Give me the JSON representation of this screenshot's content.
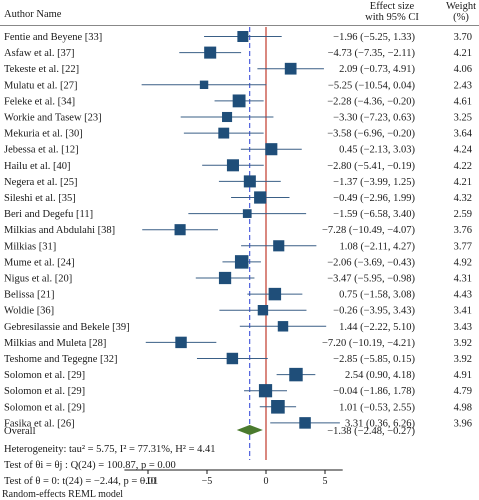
{
  "chart_data": {
    "type": "forest",
    "header": {
      "author_col": "Author Name",
      "effect_col_line1": "Effect size",
      "effect_col_line2": "with 95% CI",
      "weight_col_line1": "Weight",
      "weight_col_line2": "(%)"
    },
    "studies": [
      {
        "name": "Fentie and Beyene [33]",
        "effect": -1.96,
        "lo": -5.25,
        "hi": 1.33,
        "weight": 3.7,
        "ci_text": "−1.96 (−5.25, 1.33)",
        "weight_text": "3.70"
      },
      {
        "name": "Asfaw et al. [37]",
        "effect": -4.73,
        "lo": -7.35,
        "hi": -2.11,
        "weight": 4.21,
        "ci_text": "−4.73 (−7.35, −2.11)",
        "weight_text": "4.21"
      },
      {
        "name": "Tekeste et al. [22]",
        "effect": 2.09,
        "lo": -0.73,
        "hi": 4.91,
        "weight": 4.06,
        "ci_text": "2.09 (−0.73, 4.91)",
        "weight_text": "4.06"
      },
      {
        "name": "Mulatu et al. [27]",
        "effect": -5.25,
        "lo": -10.54,
        "hi": 0.04,
        "weight": 2.43,
        "ci_text": "−5.25 (−10.54, 0.04)",
        "weight_text": "2.43"
      },
      {
        "name": "Feleke et al. [34]",
        "effect": -2.28,
        "lo": -4.36,
        "hi": -0.2,
        "weight": 4.61,
        "ci_text": "−2.28 (−4.36, −0.20)",
        "weight_text": "4.61"
      },
      {
        "name": "Workie and Tasew [23]",
        "effect": -3.3,
        "lo": -7.23,
        "hi": 0.63,
        "weight": 3.25,
        "ci_text": "−3.30 (−7.23, 0.63)",
        "weight_text": "3.25"
      },
      {
        "name": "Mekuria et al. [30]",
        "effect": -3.58,
        "lo": -6.96,
        "hi": -0.2,
        "weight": 3.64,
        "ci_text": "−3.58 (−6.96, −0.20)",
        "weight_text": "3.64"
      },
      {
        "name": "Jebessa et al. [12]",
        "effect": 0.45,
        "lo": -2.13,
        "hi": 3.03,
        "weight": 4.24,
        "ci_text": "0.45 (−2.13, 3.03)",
        "weight_text": "4.24"
      },
      {
        "name": "Hailu et al. [40]",
        "effect": -2.8,
        "lo": -5.41,
        "hi": -0.19,
        "weight": 4.22,
        "ci_text": "−2.80 (−5.41, −0.19)",
        "weight_text": "4.22"
      },
      {
        "name": "Negera et al. [25]",
        "effect": -1.37,
        "lo": -3.99,
        "hi": 1.25,
        "weight": 4.21,
        "ci_text": "−1.37 (−3.99, 1.25)",
        "weight_text": "4.21"
      },
      {
        "name": "Sileshi et al. [35]",
        "effect": -0.49,
        "lo": -2.96,
        "hi": 1.99,
        "weight": 4.32,
        "ci_text": "−0.49 (−2.96, 1.99)",
        "weight_text": "4.32"
      },
      {
        "name": "Beri and Degefu [11]",
        "effect": -1.59,
        "lo": -6.58,
        "hi": 3.4,
        "weight": 2.59,
        "ci_text": "−1.59 (−6.58, 3.40)",
        "weight_text": "2.59"
      },
      {
        "name": "Milkias and Abdulahi [38]",
        "effect": -7.28,
        "lo": -10.49,
        "hi": -4.07,
        "weight": 3.76,
        "ci_text": "−7.28 (−10.49, −4.07)",
        "weight_text": "3.76"
      },
      {
        "name": "Milkias [31]",
        "effect": 1.08,
        "lo": -2.11,
        "hi": 4.27,
        "weight": 3.77,
        "ci_text": "1.08 (−2.11, 4.27)",
        "weight_text": "3.77"
      },
      {
        "name": "Mume et al. [24]",
        "effect": -2.06,
        "lo": -3.69,
        "hi": -0.43,
        "weight": 4.92,
        "ci_text": "−2.06 (−3.69, −0.43)",
        "weight_text": "4.92"
      },
      {
        "name": "Nigus et al. [20]",
        "effect": -3.47,
        "lo": -5.95,
        "hi": -0.98,
        "weight": 4.31,
        "ci_text": "−3.47 (−5.95, −0.98)",
        "weight_text": "4.31"
      },
      {
        "name": "Belissa [21]",
        "effect": 0.75,
        "lo": -1.58,
        "hi": 3.08,
        "weight": 4.43,
        "ci_text": "0.75 (−1.58, 3.08)",
        "weight_text": "4.43"
      },
      {
        "name": "Woldie [36]",
        "effect": -0.26,
        "lo": -3.95,
        "hi": 3.43,
        "weight": 3.41,
        "ci_text": "−0.26 (−3.95, 3.43)",
        "weight_text": "3.41"
      },
      {
        "name": "Gebresilassie and Bekele [39]",
        "effect": 1.44,
        "lo": -2.22,
        "hi": 5.1,
        "weight": 3.43,
        "ci_text": "1.44 (−2.22, 5.10)",
        "weight_text": "3.43"
      },
      {
        "name": "Milkias and Muleta [28]",
        "effect": -7.2,
        "lo": -10.19,
        "hi": -4.21,
        "weight": 3.92,
        "ci_text": "−7.20 (−10.19, −4.21)",
        "weight_text": "3.92"
      },
      {
        "name": "Teshome and Tegegne [32]",
        "effect": -2.85,
        "lo": -5.85,
        "hi": 0.15,
        "weight": 3.92,
        "ci_text": "−2.85 (−5.85, 0.15)",
        "weight_text": "3.92"
      },
      {
        "name": "Solomon et al. [29]",
        "effect": 2.54,
        "lo": 0.9,
        "hi": 4.18,
        "weight": 4.91,
        "ci_text": "2.54 (0.90, 4.18)",
        "weight_text": "4.91"
      },
      {
        "name": "Solomon et al. [29]",
        "effect": -0.04,
        "lo": -1.86,
        "hi": 1.78,
        "weight": 4.79,
        "ci_text": "−0.04 (−1.86, 1.78)",
        "weight_text": "4.79"
      },
      {
        "name": "Solomon  et al. [29]",
        "effect": 1.01,
        "lo": -0.53,
        "hi": 2.55,
        "weight": 4.98,
        "ci_text": "1.01 (−0.53, 2.55)",
        "weight_text": "4.98"
      },
      {
        "name": "Fasika et al. [26]",
        "effect": 3.31,
        "lo": 0.36,
        "hi": 6.26,
        "weight": 3.96,
        "ci_text": "3.31 (0.36, 6.26)",
        "weight_text": "3.96"
      }
    ],
    "overall": {
      "label": "Overall",
      "effect": -1.38,
      "lo": -2.48,
      "hi": -0.27,
      "ci_text": "−1.38 (−2.48, −0.27)"
    },
    "stats_lines": [
      "Heterogeneity: tau² = 5.75, I² = 77.31%, H² = 4.41",
      "Test of θi = θj : Q(24) = 100.87, p = 0.00",
      "Test of θ = 0: t(24) = −2.44, p = 0.01"
    ],
    "x_axis": {
      "ticks": [
        -10,
        -5,
        0,
        5
      ],
      "tick_labels": [
        "−10",
        "−5",
        "0",
        "5"
      ],
      "range": [
        -12,
        6.5
      ]
    },
    "reference_lines": {
      "null_value": 0,
      "overall_value": -1.38
    },
    "footnote": "Random-effects REML model",
    "colors": {
      "marker": "#1f4e79",
      "diamond": "#4a7a2e",
      "null_line": "#c0392b",
      "overall_line": "#2b3fd6",
      "ci_line": "#3a5f86",
      "text": "#1a1a1a"
    }
  }
}
